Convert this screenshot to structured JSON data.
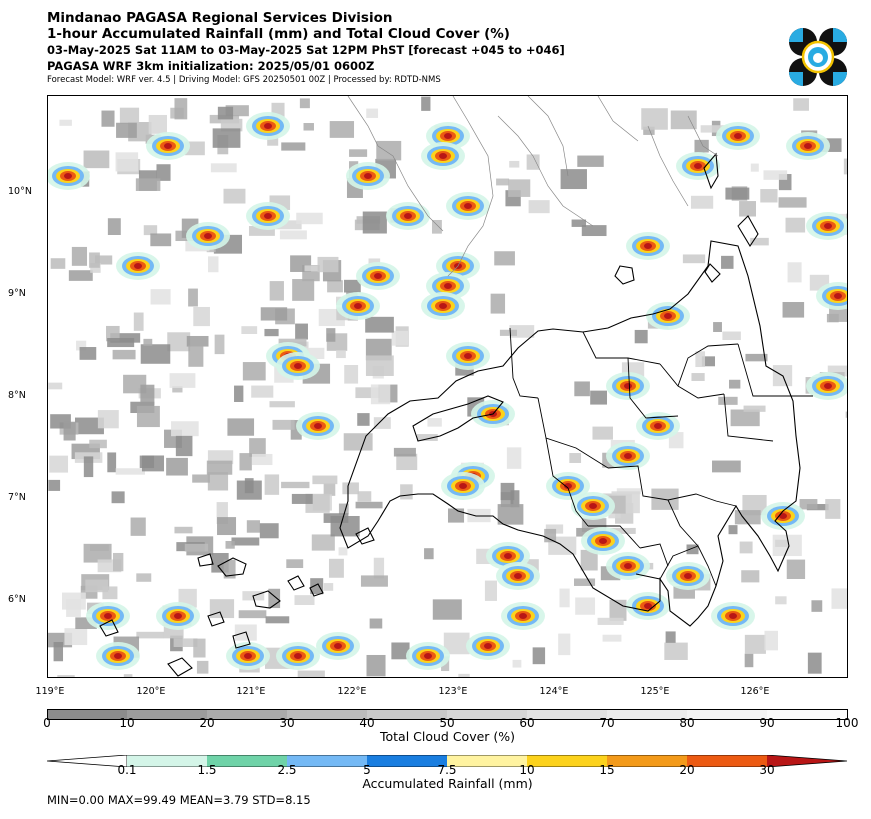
{
  "header": {
    "line1": "Mindanao PAGASA Regional Services Division",
    "line2": "1-hour Accumulated Rainfall (mm) and Total Cloud Cover (%)",
    "line3": "03-May-2025 Sat 11AM to 03-May-2025 Sat 12PM PhST [forecast +045 to +046]",
    "line4": "PAGASA WRF 3km initialization: 2025/05/01 0600Z",
    "line5": "Forecast Model: WRF ver. 4.5 | Driving Model: GFS 20250501 00Z | Processed by: RDTD-NMS"
  },
  "map": {
    "lat_labels": [
      "10°N",
      "9°N",
      "8°N",
      "7°N",
      "6°N"
    ],
    "lon_labels": [
      "119°E",
      "120°E",
      "121°E",
      "122°E",
      "123°E",
      "124°E",
      "125°E",
      "126°E"
    ],
    "lat_values": [
      10,
      9,
      8,
      7,
      6
    ],
    "lon_values": [
      119,
      120,
      121,
      122,
      123,
      124,
      125,
      126
    ],
    "lon_range": [
      119.0,
      126.9
    ],
    "lat_range": [
      5.2,
      11.0
    ]
  },
  "cloud_colorbar": {
    "title": "Total Cloud Cover (%)",
    "ticks": [
      "0",
      "10",
      "20",
      "30",
      "40",
      "50",
      "60",
      "70",
      "80",
      "90",
      "100"
    ],
    "colors": [
      "#8c8c8c",
      "#9c9c9c",
      "#ababab",
      "#bbbbbb",
      "#c9c9c9",
      "#d6d6d6",
      "#e2e2e2",
      "#ececec",
      "#f4f4f4",
      "#fbfbfb"
    ]
  },
  "rain_colorbar": {
    "title": "Accumulated Rainfall (mm)",
    "ticks": [
      "0.1",
      "1.5",
      "2.5",
      "5",
      "7.5",
      "10",
      "15",
      "20",
      "30"
    ],
    "colors": [
      "#ffffff",
      "#d4f5e8",
      "#6fd3a8",
      "#74b9f5",
      "#1a7ee0",
      "#fff3a0",
      "#fcd21c",
      "#f39a1a",
      "#ec5a12",
      "#b81616"
    ]
  },
  "stats": "MIN=0.00   MAX=99.49   MEAN=3.79   STD=8.15",
  "colors": {
    "logo_blue": "#29abe2",
    "logo_black": "#111111",
    "logo_gold": "#f2c200"
  }
}
